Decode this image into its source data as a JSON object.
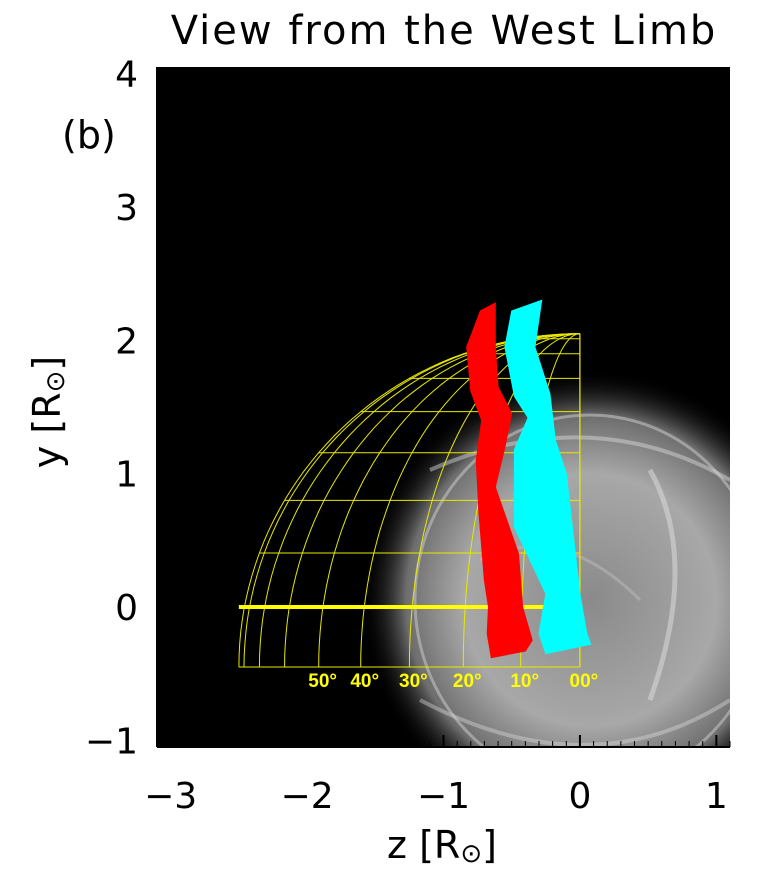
{
  "chart_data": {
    "type": "scatter",
    "title": "View from the West Limb",
    "panel_label": "(b)",
    "xlabel": "z [R",
    "xlabel_sub": "⊙",
    "xlabel_end": "]",
    "ylabel": "y [R",
    "ylabel_sub": "⊙",
    "ylabel_end": "]",
    "xlim": [
      -3.1,
      1.1
    ],
    "ylim": [
      -1.05,
      4.05
    ],
    "xticks": [
      -3,
      -2,
      -1,
      0,
      1
    ],
    "xtick_labels": [
      "−3",
      "−2",
      "−1",
      "0",
      "1"
    ],
    "yticks": [
      -1,
      0,
      1,
      2,
      3,
      4
    ],
    "ytick_labels": [
      "−1",
      "0",
      "1",
      "2",
      "3",
      "4"
    ],
    "grid": false,
    "colors": {
      "background": "#000000",
      "grid_lines": "#e8e800",
      "grid_labels": "#ffff00",
      "series_red": "#ff0000",
      "series_cyan": "#00ffff"
    },
    "sphere_grid": {
      "radius": 2.5,
      "center_y": -0.45,
      "longitude_labels": [
        "50°",
        "40°",
        "30°",
        "20°",
        "10°",
        "00°"
      ],
      "longitudes_deg": [
        0,
        10,
        20,
        30,
        40,
        50,
        60,
        70,
        80,
        90
      ],
      "latitudes_deg": [
        0,
        20,
        30,
        40,
        50,
        60,
        70,
        80
      ]
    },
    "series": [
      {
        "color": "red",
        "left": [
          [
            -0.73,
            2.22
          ],
          [
            -0.83,
            1.95
          ],
          [
            -0.8,
            1.62
          ],
          [
            -0.72,
            1.4
          ],
          [
            -0.76,
            1.1
          ],
          [
            -0.74,
            0.7
          ],
          [
            -0.7,
            0.2
          ],
          [
            -0.67,
            0.0
          ],
          [
            -0.68,
            -0.2
          ],
          [
            -0.65,
            -0.38
          ]
        ],
        "right": [
          [
            -0.62,
            2.28
          ],
          [
            -0.62,
            1.95
          ],
          [
            -0.6,
            1.65
          ],
          [
            -0.5,
            1.45
          ],
          [
            -0.55,
            1.2
          ],
          [
            -0.62,
            0.9
          ],
          [
            -0.45,
            0.4
          ],
          [
            -0.42,
            0.0
          ],
          [
            -0.35,
            -0.25
          ],
          [
            -0.4,
            -0.33
          ]
        ]
      },
      {
        "color": "cyan",
        "left": [
          [
            -0.5,
            2.22
          ],
          [
            -0.55,
            1.95
          ],
          [
            -0.48,
            1.58
          ],
          [
            -0.38,
            1.42
          ],
          [
            -0.48,
            1.18
          ],
          [
            -0.48,
            0.6
          ],
          [
            -0.25,
            0.1
          ],
          [
            -0.3,
            -0.2
          ],
          [
            -0.25,
            -0.35
          ]
        ],
        "right": [
          [
            -0.28,
            2.3
          ],
          [
            -0.33,
            1.95
          ],
          [
            -0.22,
            1.6
          ],
          [
            -0.18,
            1.25
          ],
          [
            -0.1,
            1.0
          ],
          [
            -0.05,
            0.55
          ],
          [
            0.0,
            0.1
          ],
          [
            0.05,
            -0.2
          ],
          [
            0.08,
            -0.28
          ]
        ]
      }
    ],
    "equator_line": {
      "y": 0.0,
      "x_from": -2.5,
      "x_to": 0.0
    }
  }
}
